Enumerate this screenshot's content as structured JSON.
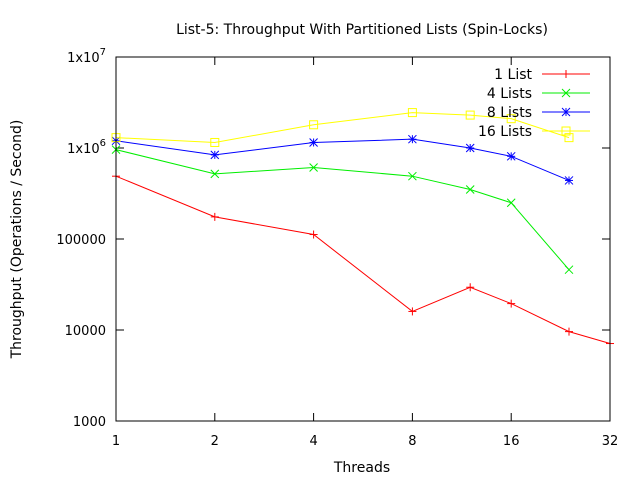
{
  "chart_data": {
    "type": "line",
    "title": "List-5: Throughput With Partitioned Lists (Spin-Locks)",
    "xlabel": "Threads",
    "ylabel": "Throughput (Operations / Second)",
    "xscale": "log2",
    "yscale": "log10",
    "xlim": [
      1,
      32
    ],
    "ylim": [
      1000,
      10000000
    ],
    "x_ticks": [
      {
        "value": 1,
        "label": "1"
      },
      {
        "value": 2,
        "label": "2"
      },
      {
        "value": 4,
        "label": "4"
      },
      {
        "value": 8,
        "label": "8"
      },
      {
        "value": 16,
        "label": "16"
      },
      {
        "value": 32,
        "label": "32"
      }
    ],
    "y_ticks": [
      {
        "value": 1000,
        "label": "1000"
      },
      {
        "value": 10000,
        "label": "10000"
      },
      {
        "value": 100000,
        "label": "100000"
      },
      {
        "value": 1000000,
        "label": "1x10",
        "exp": "6"
      },
      {
        "value": 10000000,
        "label": "1x10",
        "exp": "7"
      }
    ],
    "grid": false,
    "legend": "top-right",
    "series": [
      {
        "name": "1 List",
        "color": "#ff0000",
        "marker": "plus",
        "points": [
          [
            1,
            490000
          ],
          [
            2,
            175000
          ],
          [
            4,
            112000
          ],
          [
            8,
            16000
          ],
          [
            12,
            29500
          ],
          [
            16,
            19500
          ],
          [
            24,
            9600
          ],
          [
            32,
            7100
          ]
        ]
      },
      {
        "name": "4 Lists",
        "color": "#00ee00",
        "marker": "cross",
        "points": [
          [
            1,
            960000
          ],
          [
            2,
            520000
          ],
          [
            4,
            610000
          ],
          [
            8,
            490000
          ],
          [
            12,
            350000
          ],
          [
            16,
            250000
          ],
          [
            24,
            46000
          ]
        ]
      },
      {
        "name": "8 Lists",
        "color": "#0000ff",
        "marker": "star",
        "points": [
          [
            1,
            1200000
          ],
          [
            2,
            840000
          ],
          [
            4,
            1150000
          ],
          [
            8,
            1250000
          ],
          [
            12,
            1000000
          ],
          [
            16,
            810000
          ],
          [
            24,
            440000
          ]
        ]
      },
      {
        "name": "16 Lists",
        "color": "#ffff00",
        "marker": "square",
        "points": [
          [
            1,
            1300000
          ],
          [
            2,
            1150000
          ],
          [
            4,
            1800000
          ],
          [
            8,
            2450000
          ],
          [
            12,
            2300000
          ],
          [
            16,
            2100000
          ],
          [
            24,
            1300000
          ]
        ]
      }
    ]
  }
}
